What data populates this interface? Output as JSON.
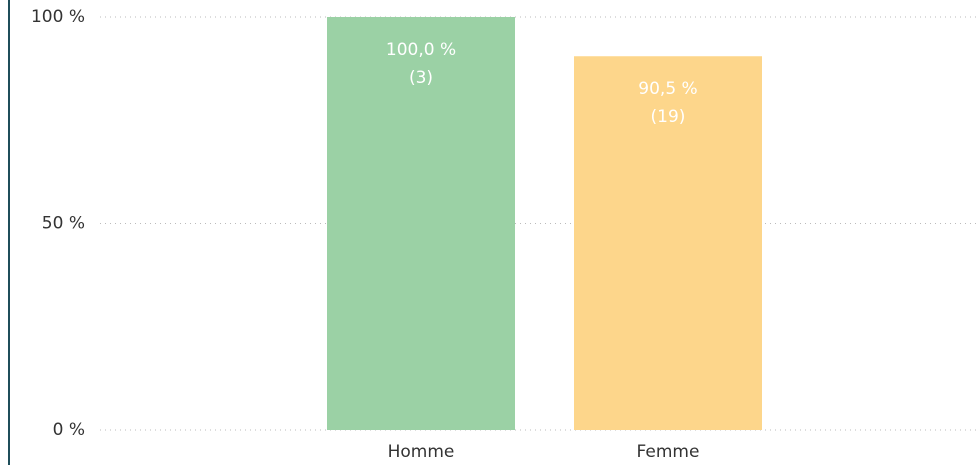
{
  "chart_data": {
    "type": "bar",
    "categories": [
      "Homme",
      "Femme"
    ],
    "values": [
      100,
      90.5
    ],
    "value_labels": [
      "100,0 %",
      "90,5 %"
    ],
    "counts": [
      3,
      19
    ],
    "count_labels": [
      "(3)",
      "(19)"
    ],
    "colors": [
      "#9bd1a5",
      "#fdd68b"
    ],
    "ylim": [
      0,
      100
    ],
    "yticks": [
      {
        "value": 0,
        "label": "0 %"
      },
      {
        "value": 50,
        "label": "50 %"
      },
      {
        "value": 100,
        "label": "100 %"
      }
    ],
    "grid": true
  }
}
